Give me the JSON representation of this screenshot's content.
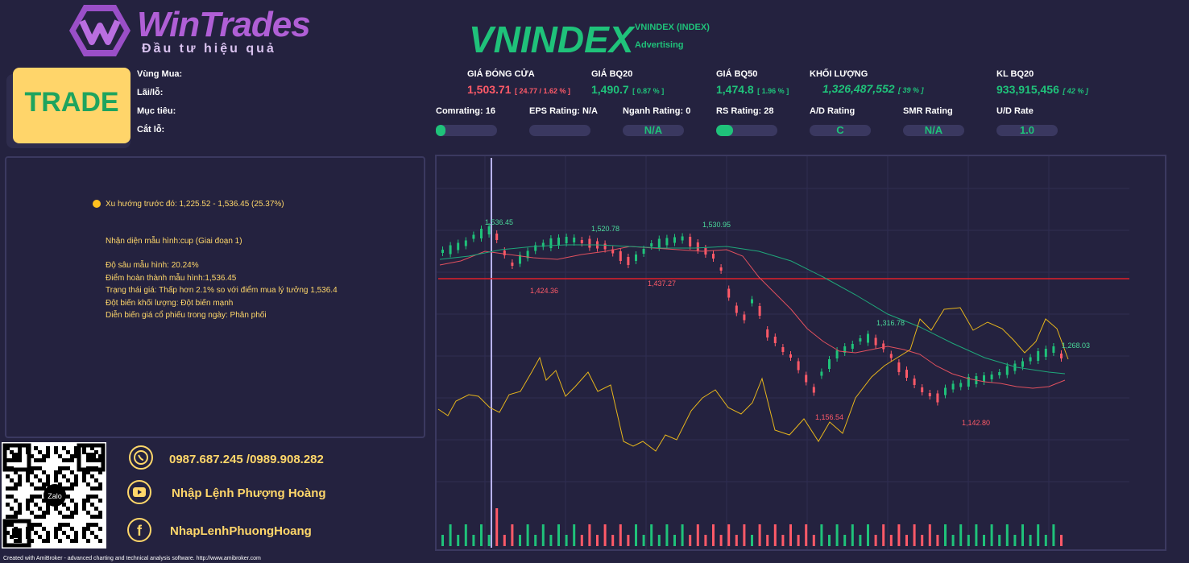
{
  "brand": {
    "name": "WinTrades",
    "tagline": "Đầu tư hiệu quả"
  },
  "ticker": {
    "symbol": "VNINDEX",
    "full_name": "VNINDEX (INDEX)",
    "category": "Advertising"
  },
  "trade_box": {
    "label": "TRADE"
  },
  "trade_fields": {
    "buy_zone": "Vùng Mua:",
    "profit_loss": "Lãi/lỗ:",
    "target": "Mục tiêu:",
    "stop_loss": "Cắt lỗ:"
  },
  "stats": [
    {
      "label": "GIÁ ĐÓNG CỬA",
      "value": "1,503.71",
      "sub": "[ 24.77 / 1.62 % ]",
      "color": "#ff5a68"
    },
    {
      "label": "GIÁ BQ20",
      "value": "1,490.7",
      "sub": "[ 0.87 % ]",
      "color": "#1fc27a"
    },
    {
      "label": "GIÁ BQ50",
      "value": "1,474.8",
      "sub": "[ 1.96 % ]",
      "color": "#1fc27a"
    },
    {
      "label": "KHỐI LƯỢNG",
      "value": "1,326,487,552",
      "sub": "[ 39 % ]",
      "color": "#1fc27a"
    },
    {
      "label": "KL BQ20",
      "value": "933,915,456",
      "sub": "[ 42 % ]",
      "color": "#1fc27a"
    }
  ],
  "ratings": [
    {
      "label": "Comrating: 16",
      "value": "",
      "fill": 0.16
    },
    {
      "label": "EPS Rating: N/A",
      "value": "",
      "fill": 0
    },
    {
      "label": "Nganh Rating: 0",
      "value": "N/A",
      "fill": 0
    },
    {
      "label": "RS Rating: 28",
      "value": "",
      "fill": 0.28
    },
    {
      "label": "A/D Rating",
      "value": "C",
      "fill": 0
    },
    {
      "label": "SMR Rating",
      "value": "N/A",
      "fill": 0
    },
    {
      "label": "U/D Rate",
      "value": "1.0",
      "fill": 0
    }
  ],
  "info": {
    "trend": "Xu hướng trước đó: 1,225.52 - 1,536.45 (25.37%)",
    "pattern": "Nhận diện mẫu hình:cup (Giai đoạn 1)",
    "depth": "Độ sâu mẫu hình: 20.24%",
    "completion": "Điểm hoàn thành mẫu hình:1,536.45",
    "price_status": "Trạng thái giá: Thấp hơn 2.1% so với điểm mua lý tưởng 1,536.4",
    "volume": "Đột biến khối lượng: Đột biến mạnh",
    "intraday": "Diễn biến giá cổ phiếu trong ngày:  Phân phối"
  },
  "chart_labels": {
    "high1": "1,536.45",
    "high2": "1,520.78",
    "high3": "1,530.95",
    "low1": "1,424.36",
    "low2": "1,437.27",
    "mid1": "1,316.78",
    "low3": "1,156.54",
    "low4": "1,142.80",
    "last": "1,268.03"
  },
  "chart_data": {
    "type": "line",
    "series": [],
    "annotations": [
      "1,536.45",
      "1,520.78",
      "1,530.95",
      "1,424.36",
      "1,437.27",
      "1,316.78",
      "1,156.54",
      "1,142.80",
      "1,268.03"
    ],
    "resistance_level": 1437.27
  },
  "contact": {
    "phone": "0987.687.245 /0989.908.282",
    "youtube": "Nhập Lệnh Phượng Hoàng",
    "facebook": "NhapLenhPhuongHoang",
    "qr_label": "Zalo"
  },
  "footer": "Created with AmiBroker - advanced charting and technical analysis software. http://www.amibroker.com",
  "colors": {
    "background": "#24223f",
    "up": "#1fc27a",
    "down": "#ff5a68",
    "accent": "#ffd76a"
  }
}
